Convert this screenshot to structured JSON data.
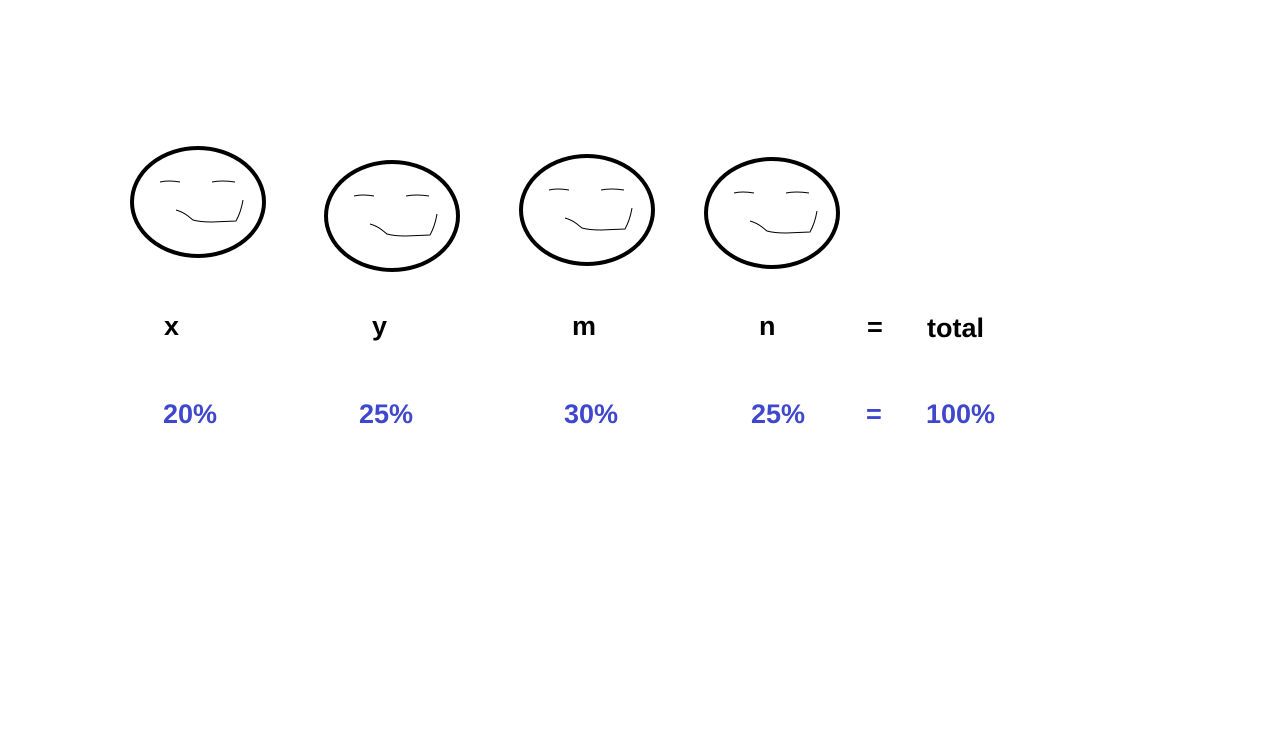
{
  "items": [
    {
      "label": "x",
      "value": "20%"
    },
    {
      "label": "y",
      "value": "25%"
    },
    {
      "label": "m",
      "value": "30%"
    },
    {
      "label": "n",
      "value": "25%"
    }
  ],
  "equals": "=",
  "total": {
    "label": "total",
    "value": "100%"
  }
}
